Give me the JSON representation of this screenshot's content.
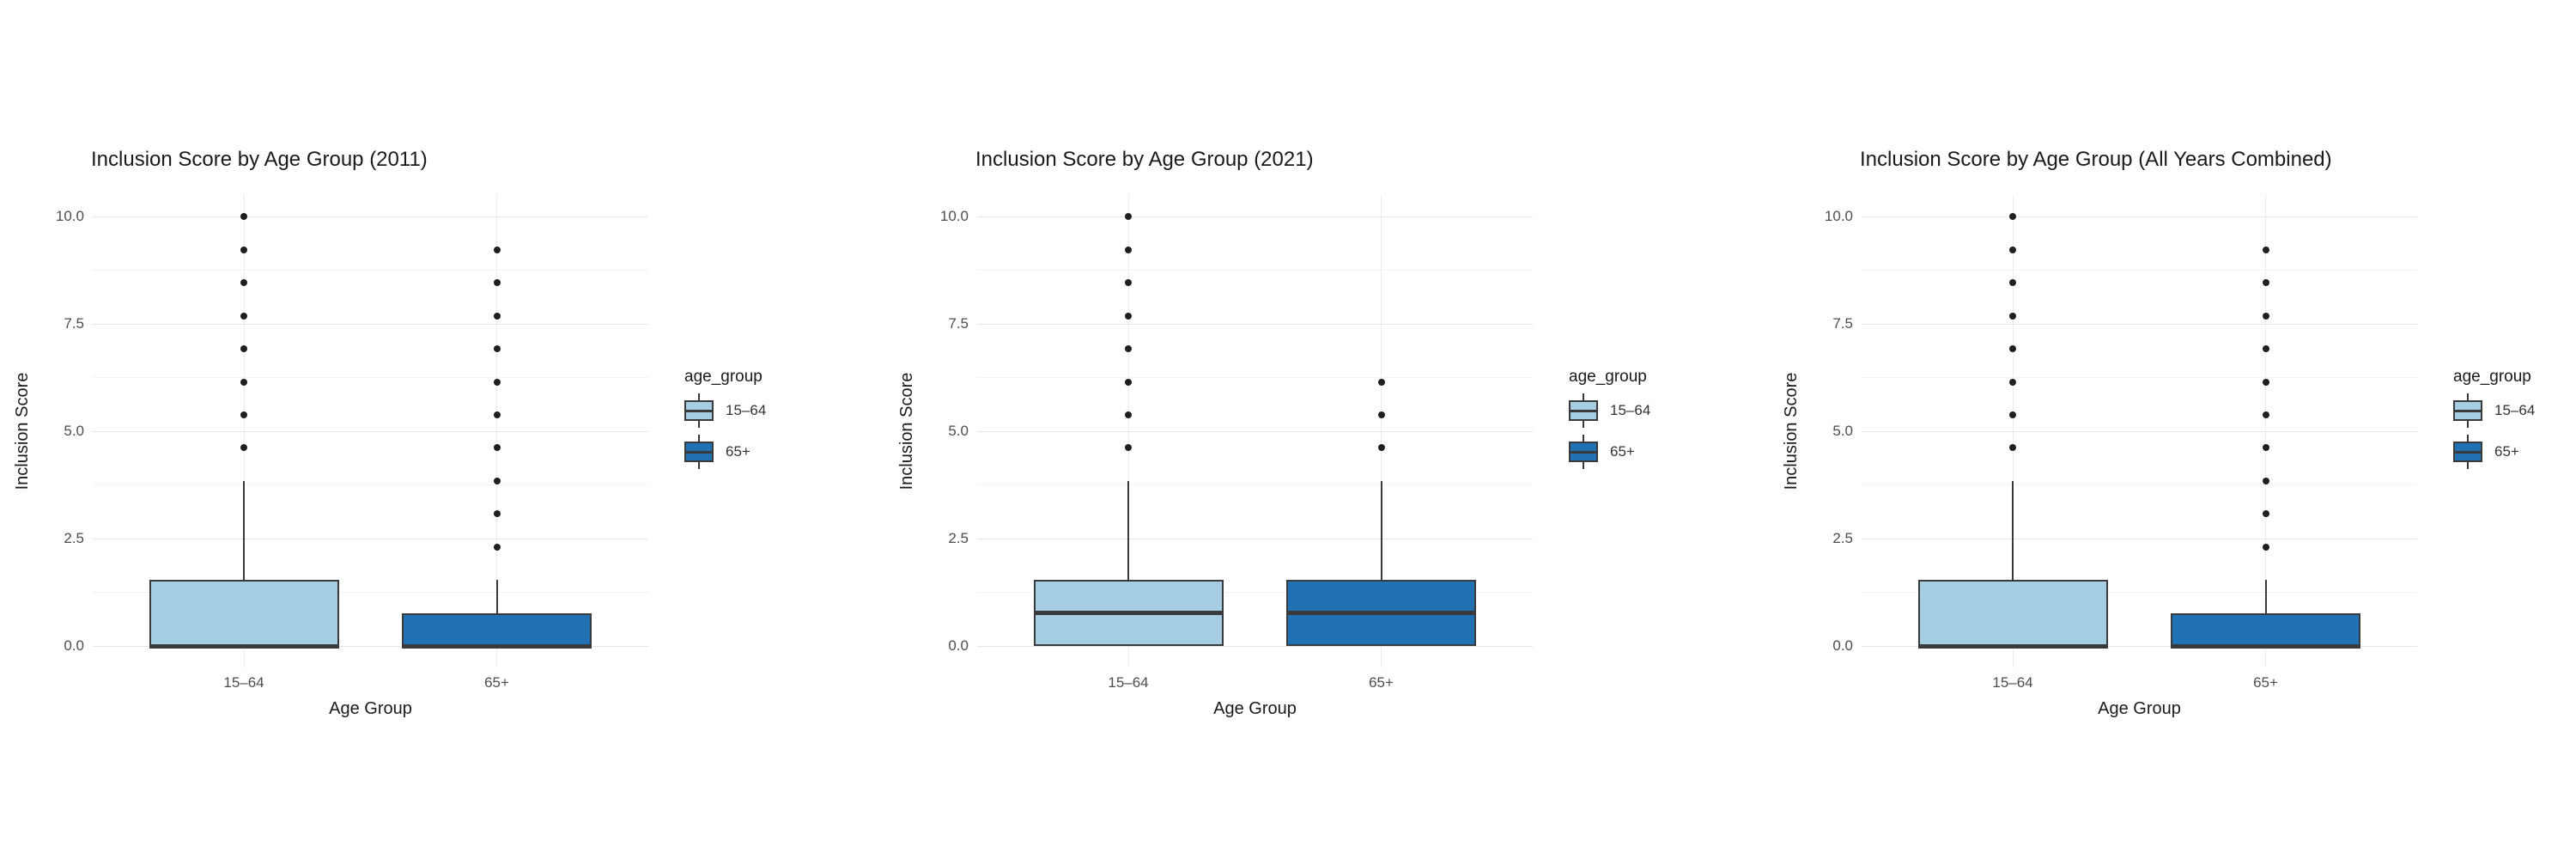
{
  "colors": {
    "background": "#ffffff",
    "box_fill_15_64": "#A5CDE3",
    "box_fill_65plus": "#2171B5",
    "box_border": "#3A3A3A",
    "gridline_major": "#E5E5E5",
    "gridline_minor": "#F2F2F2",
    "outlier_dot": "#1F1F1F",
    "title_text": "#1A1A1A",
    "axis_text": "#4D4D4D"
  },
  "chart_data": [
    {
      "type": "box",
      "title": "Inclusion Score by Age Group (2011)",
      "xlabel": "Age Group",
      "ylabel": "Inclusion Score",
      "ylim": [
        0,
        10
      ],
      "y_tick_values": [
        0,
        2.5,
        5,
        7.5,
        10
      ],
      "y_tick_labels": [
        "0.0",
        "2.5",
        "5.0",
        "7.5",
        "10.0"
      ],
      "categories": [
        "15–64",
        "65+"
      ],
      "grid": "major+minor horizontal, major vertical",
      "legend_position": "right",
      "legend": {
        "title": "age_group",
        "items": [
          {
            "label": "15–64",
            "color": "#A5CDE3"
          },
          {
            "label": "65+",
            "color": "#2171B5"
          }
        ]
      },
      "boxes": [
        {
          "category": "15–64",
          "fill": "#A5CDE3",
          "q1": 0,
          "median": 0,
          "q3": 1.54,
          "whisker_low": 0,
          "whisker_high": 3.85,
          "outliers": [
            4.62,
            5.38,
            6.15,
            6.92,
            7.69,
            8.46,
            9.23,
            10.0
          ]
        },
        {
          "category": "65+",
          "fill": "#2171B5",
          "q1": 0,
          "median": 0,
          "q3": 0.77,
          "whisker_low": 0,
          "whisker_high": 1.54,
          "outliers": [
            2.31,
            3.08,
            3.85,
            4.62,
            5.38,
            6.15,
            6.92,
            7.69,
            8.46,
            9.23
          ]
        }
      ]
    },
    {
      "type": "box",
      "title": "Inclusion Score by Age Group (2021)",
      "xlabel": "Age Group",
      "ylabel": "Inclusion Score",
      "ylim": [
        0,
        10
      ],
      "y_tick_values": [
        0,
        2.5,
        5,
        7.5,
        10
      ],
      "y_tick_labels": [
        "0.0",
        "2.5",
        "5.0",
        "7.5",
        "10.0"
      ],
      "categories": [
        "15–64",
        "65+"
      ],
      "grid": "major+minor horizontal, major vertical",
      "legend_position": "right",
      "legend": {
        "title": "age_group",
        "items": [
          {
            "label": "15–64",
            "color": "#A5CDE3"
          },
          {
            "label": "65+",
            "color": "#2171B5"
          }
        ]
      },
      "boxes": [
        {
          "category": "15–64",
          "fill": "#A5CDE3",
          "q1": 0,
          "median": 0.77,
          "q3": 1.54,
          "whisker_low": 0,
          "whisker_high": 3.85,
          "outliers": [
            4.62,
            5.38,
            6.15,
            6.92,
            7.69,
            8.46,
            9.23,
            10.0
          ]
        },
        {
          "category": "65+",
          "fill": "#2171B5",
          "q1": 0,
          "median": 0.77,
          "q3": 1.54,
          "whisker_low": 0,
          "whisker_high": 3.85,
          "outliers": [
            4.62,
            5.38,
            6.15
          ]
        }
      ]
    },
    {
      "type": "box",
      "title": "Inclusion Score by Age Group (All Years Combined)",
      "xlabel": "Age Group",
      "ylabel": "Inclusion Score",
      "ylim": [
        0,
        10
      ],
      "y_tick_values": [
        0,
        2.5,
        5,
        7.5,
        10
      ],
      "y_tick_labels": [
        "0.0",
        "2.5",
        "5.0",
        "7.5",
        "10.0"
      ],
      "categories": [
        "15–64",
        "65+"
      ],
      "grid": "major+minor horizontal, major vertical",
      "legend_position": "right",
      "legend": {
        "title": "age_group",
        "items": [
          {
            "label": "15–64",
            "color": "#A5CDE3"
          },
          {
            "label": "65+",
            "color": "#2171B5"
          }
        ]
      },
      "boxes": [
        {
          "category": "15–64",
          "fill": "#A5CDE3",
          "q1": 0,
          "median": 0,
          "q3": 1.54,
          "whisker_low": 0,
          "whisker_high": 3.85,
          "outliers": [
            4.62,
            5.38,
            6.15,
            6.92,
            7.69,
            8.46,
            9.23,
            10.0
          ]
        },
        {
          "category": "65+",
          "fill": "#2171B5",
          "q1": 0,
          "median": 0,
          "q3": 0.77,
          "whisker_low": 0,
          "whisker_high": 1.54,
          "outliers": [
            2.31,
            3.08,
            3.85,
            4.62,
            5.38,
            6.15,
            6.92,
            7.69,
            8.46,
            9.23
          ]
        }
      ]
    }
  ]
}
